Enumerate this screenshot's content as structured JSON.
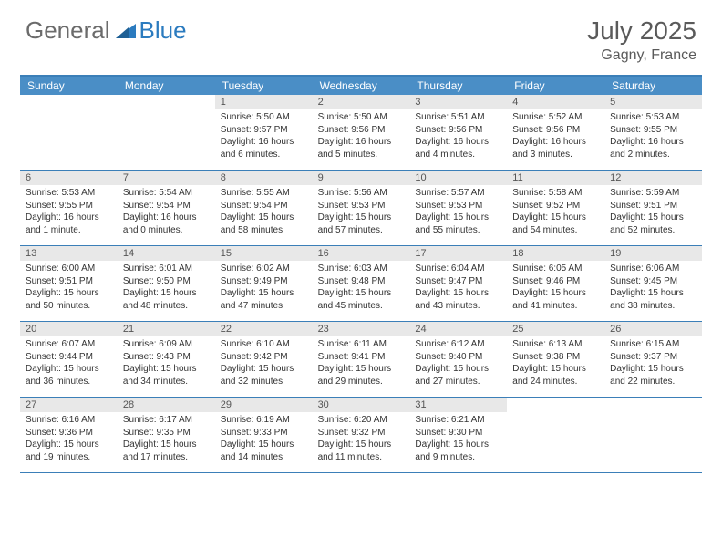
{
  "logo": {
    "text1": "General",
    "text2": "Blue"
  },
  "title": "July 2025",
  "location": "Gagny, France",
  "colors": {
    "header_bg": "#4a8ec6",
    "header_text": "#ffffff",
    "border": "#3b7fb8",
    "daynum_bg": "#e8e8e8",
    "text": "#333333",
    "logo_gray": "#6b6b6b",
    "logo_blue": "#2b7bbf",
    "title_color": "#5a5a5a"
  },
  "day_names": [
    "Sunday",
    "Monday",
    "Tuesday",
    "Wednesday",
    "Thursday",
    "Friday",
    "Saturday"
  ],
  "weeks": [
    [
      {
        "empty": true
      },
      {
        "empty": true
      },
      {
        "n": "1",
        "sr": "5:50 AM",
        "ss": "9:57 PM",
        "dl": "16 hours and 6 minutes."
      },
      {
        "n": "2",
        "sr": "5:50 AM",
        "ss": "9:56 PM",
        "dl": "16 hours and 5 minutes."
      },
      {
        "n": "3",
        "sr": "5:51 AM",
        "ss": "9:56 PM",
        "dl": "16 hours and 4 minutes."
      },
      {
        "n": "4",
        "sr": "5:52 AM",
        "ss": "9:56 PM",
        "dl": "16 hours and 3 minutes."
      },
      {
        "n": "5",
        "sr": "5:53 AM",
        "ss": "9:55 PM",
        "dl": "16 hours and 2 minutes."
      }
    ],
    [
      {
        "n": "6",
        "sr": "5:53 AM",
        "ss": "9:55 PM",
        "dl": "16 hours and 1 minute."
      },
      {
        "n": "7",
        "sr": "5:54 AM",
        "ss": "9:54 PM",
        "dl": "16 hours and 0 minutes."
      },
      {
        "n": "8",
        "sr": "5:55 AM",
        "ss": "9:54 PM",
        "dl": "15 hours and 58 minutes."
      },
      {
        "n": "9",
        "sr": "5:56 AM",
        "ss": "9:53 PM",
        "dl": "15 hours and 57 minutes."
      },
      {
        "n": "10",
        "sr": "5:57 AM",
        "ss": "9:53 PM",
        "dl": "15 hours and 55 minutes."
      },
      {
        "n": "11",
        "sr": "5:58 AM",
        "ss": "9:52 PM",
        "dl": "15 hours and 54 minutes."
      },
      {
        "n": "12",
        "sr": "5:59 AM",
        "ss": "9:51 PM",
        "dl": "15 hours and 52 minutes."
      }
    ],
    [
      {
        "n": "13",
        "sr": "6:00 AM",
        "ss": "9:51 PM",
        "dl": "15 hours and 50 minutes."
      },
      {
        "n": "14",
        "sr": "6:01 AM",
        "ss": "9:50 PM",
        "dl": "15 hours and 48 minutes."
      },
      {
        "n": "15",
        "sr": "6:02 AM",
        "ss": "9:49 PM",
        "dl": "15 hours and 47 minutes."
      },
      {
        "n": "16",
        "sr": "6:03 AM",
        "ss": "9:48 PM",
        "dl": "15 hours and 45 minutes."
      },
      {
        "n": "17",
        "sr": "6:04 AM",
        "ss": "9:47 PM",
        "dl": "15 hours and 43 minutes."
      },
      {
        "n": "18",
        "sr": "6:05 AM",
        "ss": "9:46 PM",
        "dl": "15 hours and 41 minutes."
      },
      {
        "n": "19",
        "sr": "6:06 AM",
        "ss": "9:45 PM",
        "dl": "15 hours and 38 minutes."
      }
    ],
    [
      {
        "n": "20",
        "sr": "6:07 AM",
        "ss": "9:44 PM",
        "dl": "15 hours and 36 minutes."
      },
      {
        "n": "21",
        "sr": "6:09 AM",
        "ss": "9:43 PM",
        "dl": "15 hours and 34 minutes."
      },
      {
        "n": "22",
        "sr": "6:10 AM",
        "ss": "9:42 PM",
        "dl": "15 hours and 32 minutes."
      },
      {
        "n": "23",
        "sr": "6:11 AM",
        "ss": "9:41 PM",
        "dl": "15 hours and 29 minutes."
      },
      {
        "n": "24",
        "sr": "6:12 AM",
        "ss": "9:40 PM",
        "dl": "15 hours and 27 minutes."
      },
      {
        "n": "25",
        "sr": "6:13 AM",
        "ss": "9:38 PM",
        "dl": "15 hours and 24 minutes."
      },
      {
        "n": "26",
        "sr": "6:15 AM",
        "ss": "9:37 PM",
        "dl": "15 hours and 22 minutes."
      }
    ],
    [
      {
        "n": "27",
        "sr": "6:16 AM",
        "ss": "9:36 PM",
        "dl": "15 hours and 19 minutes."
      },
      {
        "n": "28",
        "sr": "6:17 AM",
        "ss": "9:35 PM",
        "dl": "15 hours and 17 minutes."
      },
      {
        "n": "29",
        "sr": "6:19 AM",
        "ss": "9:33 PM",
        "dl": "15 hours and 14 minutes."
      },
      {
        "n": "30",
        "sr": "6:20 AM",
        "ss": "9:32 PM",
        "dl": "15 hours and 11 minutes."
      },
      {
        "n": "31",
        "sr": "6:21 AM",
        "ss": "9:30 PM",
        "dl": "15 hours and 9 minutes."
      },
      {
        "empty": true
      },
      {
        "empty": true
      }
    ]
  ],
  "labels": {
    "sunrise": "Sunrise:",
    "sunset": "Sunset:",
    "daylight": "Daylight:"
  }
}
